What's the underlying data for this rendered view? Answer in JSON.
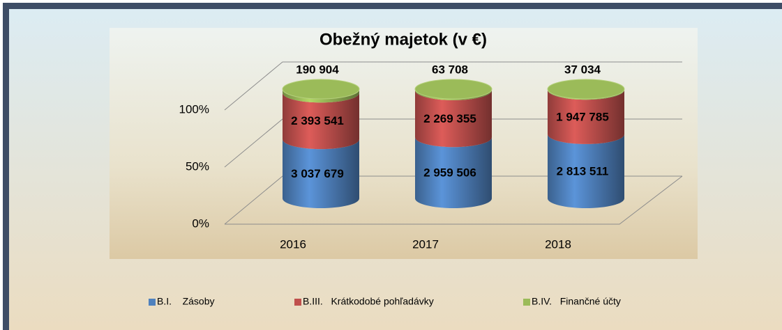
{
  "chart_data": {
    "type": "cylinder",
    "stacking": "percent",
    "title": "Obežný majetok (v €)",
    "categories": [
      "2016",
      "2017",
      "2018"
    ],
    "series": [
      {
        "name": "B.I.    Zásoby",
        "color": "#4f81bd",
        "values": [
          3037679,
          2959506,
          2813511
        ],
        "value_labels": [
          "3 037 679",
          "2 959 506",
          "2 813 511"
        ]
      },
      {
        "name": "B.III.   Krátkodobé pohľadávky",
        "color": "#c0504d",
        "values": [
          2393541,
          2269355,
          1947785
        ],
        "value_labels": [
          "2 393 541",
          "2 269 355",
          "1 947 785"
        ]
      },
      {
        "name": "B.IV.   Finančné účty",
        "color": "#9bbb59",
        "values": [
          190904,
          63708,
          37034
        ],
        "value_labels": [
          "190 904",
          "63 708",
          "37 034"
        ]
      }
    ],
    "ylim": [
      0,
      100
    ],
    "yticks": [
      {
        "value": 0,
        "label": "0%"
      },
      {
        "value": 50,
        "label": "50%"
      },
      {
        "value": 100,
        "label": "100%"
      }
    ],
    "grid": true,
    "legend": "bottom"
  }
}
